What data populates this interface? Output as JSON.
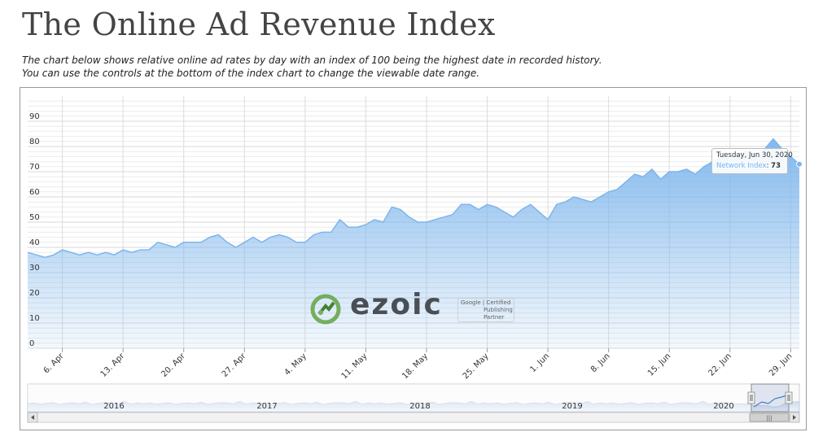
{
  "page": {
    "title": "The Online Ad Revenue Index",
    "subtitle_line1": "The chart below shows relative online ad rates by day with an index of 100 being the highest date in recorded history.",
    "subtitle_line2": "You can use the controls at the bottom of the index chart to change the viewable date range."
  },
  "watermark": {
    "brand": "ezoic",
    "badge_line1": "Google | Certified",
    "badge_line2": "Publishing",
    "badge_line3": "Partner"
  },
  "tooltip": {
    "date": "Tuesday, Jun 30, 2020",
    "series_name": "Network Index",
    "value": "73"
  },
  "chart_data": {
    "type": "area",
    "ylim": [
      0,
      100
    ],
    "yticks": [
      0,
      10,
      20,
      30,
      40,
      50,
      60,
      70,
      80,
      90
    ],
    "xlim": [
      "2020-04-02",
      "2020-06-30"
    ],
    "xticks": [
      {
        "date": "2020-04-06",
        "label": "6. Apr"
      },
      {
        "date": "2020-04-13",
        "label": "13. Apr"
      },
      {
        "date": "2020-04-20",
        "label": "20. Apr"
      },
      {
        "date": "2020-04-27",
        "label": "27. Apr"
      },
      {
        "date": "2020-05-04",
        "label": "4. May"
      },
      {
        "date": "2020-05-11",
        "label": "11. May"
      },
      {
        "date": "2020-05-18",
        "label": "18. May"
      },
      {
        "date": "2020-05-25",
        "label": "25. May"
      },
      {
        "date": "2020-06-01",
        "label": "1. Jun"
      },
      {
        "date": "2020-06-08",
        "label": "8. Jun"
      },
      {
        "date": "2020-06-15",
        "label": "15. Jun"
      },
      {
        "date": "2020-06-22",
        "label": "22. Jun"
      },
      {
        "date": "2020-06-29",
        "label": "29. Jun"
      }
    ],
    "series": [
      {
        "values": [
          [
            "2020-04-02",
            38
          ],
          [
            "2020-04-03",
            37
          ],
          [
            "2020-04-04",
            36
          ],
          [
            "2020-04-05",
            37
          ],
          [
            "2020-04-06",
            39
          ],
          [
            "2020-04-07",
            38
          ],
          [
            "2020-04-08",
            37
          ],
          [
            "2020-04-09",
            38
          ],
          [
            "2020-04-10",
            37
          ],
          [
            "2020-04-11",
            38
          ],
          [
            "2020-04-12",
            37
          ],
          [
            "2020-04-13",
            39
          ],
          [
            "2020-04-14",
            38
          ],
          [
            "2020-04-15",
            39
          ],
          [
            "2020-04-16",
            39
          ],
          [
            "2020-04-17",
            42
          ],
          [
            "2020-04-18",
            41
          ],
          [
            "2020-04-19",
            40
          ],
          [
            "2020-04-20",
            42
          ],
          [
            "2020-04-21",
            42
          ],
          [
            "2020-04-22",
            42
          ],
          [
            "2020-04-23",
            44
          ],
          [
            "2020-04-24",
            45
          ],
          [
            "2020-04-25",
            42
          ],
          [
            "2020-04-26",
            40
          ],
          [
            "2020-04-27",
            42
          ],
          [
            "2020-04-28",
            44
          ],
          [
            "2020-04-29",
            42
          ],
          [
            "2020-04-30",
            44
          ],
          [
            "2020-05-01",
            45
          ],
          [
            "2020-05-02",
            44
          ],
          [
            "2020-05-03",
            42
          ],
          [
            "2020-05-04",
            42
          ],
          [
            "2020-05-05",
            45
          ],
          [
            "2020-05-06",
            46
          ],
          [
            "2020-05-07",
            46
          ],
          [
            "2020-05-08",
            51
          ],
          [
            "2020-05-09",
            48
          ],
          [
            "2020-05-10",
            48
          ],
          [
            "2020-05-11",
            49
          ],
          [
            "2020-05-12",
            51
          ],
          [
            "2020-05-13",
            50
          ],
          [
            "2020-05-14",
            56
          ],
          [
            "2020-05-15",
            55
          ],
          [
            "2020-05-16",
            52
          ],
          [
            "2020-05-17",
            50
          ],
          [
            "2020-05-18",
            50
          ],
          [
            "2020-05-19",
            51
          ],
          [
            "2020-05-20",
            52
          ],
          [
            "2020-05-21",
            53
          ],
          [
            "2020-05-22",
            57
          ],
          [
            "2020-05-23",
            57
          ],
          [
            "2020-05-24",
            55
          ],
          [
            "2020-05-25",
            57
          ],
          [
            "2020-05-26",
            56
          ],
          [
            "2020-05-27",
            54
          ],
          [
            "2020-05-28",
            52
          ],
          [
            "2020-05-29",
            55
          ],
          [
            "2020-05-30",
            57
          ],
          [
            "2020-05-31",
            54
          ],
          [
            "2020-06-01",
            51
          ],
          [
            "2020-06-02",
            57
          ],
          [
            "2020-06-03",
            58
          ],
          [
            "2020-06-04",
            60
          ],
          [
            "2020-06-05",
            59
          ],
          [
            "2020-06-06",
            58
          ],
          [
            "2020-06-07",
            60
          ],
          [
            "2020-06-08",
            62
          ],
          [
            "2020-06-09",
            63
          ],
          [
            "2020-06-10",
            66
          ],
          [
            "2020-06-11",
            69
          ],
          [
            "2020-06-12",
            68
          ],
          [
            "2020-06-13",
            71
          ],
          [
            "2020-06-14",
            67
          ],
          [
            "2020-06-15",
            70
          ],
          [
            "2020-06-16",
            70
          ],
          [
            "2020-06-17",
            71
          ],
          [
            "2020-06-18",
            69
          ],
          [
            "2020-06-19",
            72
          ],
          [
            "2020-06-20",
            74
          ],
          [
            "2020-06-21",
            76
          ],
          [
            "2020-06-22",
            75
          ],
          [
            "2020-06-23",
            77
          ],
          [
            "2020-06-24",
            78
          ],
          [
            "2020-06-25",
            77
          ],
          [
            "2020-06-26",
            79
          ],
          [
            "2020-06-27",
            83
          ],
          [
            "2020-06-28",
            79
          ],
          [
            "2020-06-29",
            76
          ],
          [
            "2020-06-30",
            73
          ]
        ]
      }
    ],
    "navigator": {
      "year_labels": [
        "2016",
        "2017",
        "2018",
        "2019",
        "2020"
      ],
      "scroll_grip": "|||"
    }
  }
}
